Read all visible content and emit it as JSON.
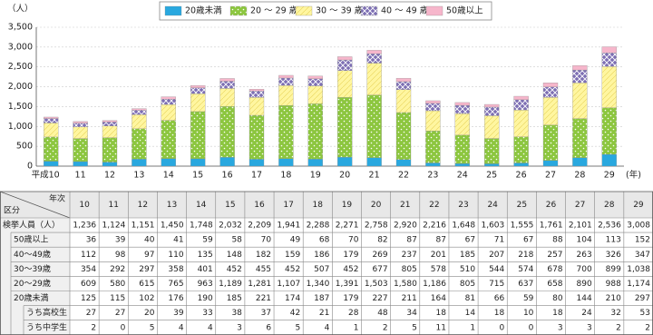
{
  "chart_data": {
    "type": "stacked-bar",
    "y_unit": "（人）",
    "x_unit": "(年)",
    "categories": [
      "平成10",
      "11",
      "12",
      "13",
      "14",
      "15",
      "16",
      "17",
      "18",
      "19",
      "20",
      "21",
      "22",
      "23",
      "24",
      "25",
      "26",
      "27",
      "28",
      "29"
    ],
    "series": [
      {
        "name": "20歳未満",
        "color": "#29a8df",
        "values": [
          125,
          115,
          102,
          176,
          190,
          185,
          221,
          174,
          187,
          179,
          227,
          211,
          164,
          81,
          66,
          59,
          80,
          144,
          210,
          297
        ]
      },
      {
        "name": "20 ～ 29 歳",
        "color": "#8cc63f",
        "values": [
          609,
          580,
          615,
          765,
          963,
          1189,
          1281,
          1107,
          1340,
          1391,
          1503,
          1580,
          1186,
          805,
          715,
          637,
          658,
          890,
          988,
          1174
        ]
      },
      {
        "name": "30 ～ 39 歳",
        "color": "#fff6a0",
        "values": [
          354,
          292,
          297,
          358,
          401,
          452,
          455,
          452,
          507,
          452,
          677,
          805,
          578,
          510,
          544,
          574,
          678,
          700,
          899,
          1038
        ]
      },
      {
        "name": "40 ～ 49 歳",
        "color": "#7d6fb3",
        "values": [
          112,
          98,
          97,
          110,
          135,
          148,
          182,
          159,
          186,
          179,
          269,
          237,
          201,
          185,
          207,
          218,
          257,
          263,
          326,
          347
        ]
      },
      {
        "name": "50歳以上",
        "color": "#f6b6cb",
        "values": [
          36,
          39,
          40,
          41,
          59,
          58,
          70,
          49,
          68,
          70,
          82,
          87,
          87,
          67,
          71,
          67,
          88,
          104,
          113,
          152
        ]
      }
    ],
    "ylim": [
      0,
      3500
    ],
    "yticks": [
      0,
      500,
      {
        "value": 1000,
        "label": "1,000"
      },
      {
        "value": 1500,
        "label": "1,500"
      },
      {
        "value": 2000,
        "label": "2,000"
      },
      {
        "value": 2500,
        "label": "2,500"
      },
      {
        "value": 3000,
        "label": "3,000"
      },
      {
        "value": 3500,
        "label": "3,500"
      }
    ],
    "grid": true
  },
  "table": {
    "corner_top": "年次",
    "corner_left": "区分",
    "columns": [
      "10",
      "11",
      "12",
      "13",
      "14",
      "15",
      "16",
      "17",
      "18",
      "19",
      "20",
      "21",
      "22",
      "23",
      "24",
      "25",
      "26",
      "27",
      "28",
      "29"
    ],
    "rows": [
      {
        "label": "検挙人員（人）",
        "cells": [
          "1,236",
          "1,124",
          "1,151",
          "1,450",
          "1,748",
          "2,032",
          "2,209",
          "1,941",
          "2,288",
          "2,271",
          "2,758",
          "2,920",
          "2,216",
          "1,648",
          "1,603",
          "1,555",
          "1,761",
          "2,101",
          "2,536",
          "3,008"
        ]
      },
      {
        "label": "50歳以上",
        "cells": [
          "36",
          "39",
          "40",
          "41",
          "59",
          "58",
          "70",
          "49",
          "68",
          "70",
          "82",
          "87",
          "87",
          "67",
          "71",
          "67",
          "88",
          "104",
          "113",
          "152"
        ]
      },
      {
        "label": "40～49歳",
        "cells": [
          "112",
          "98",
          "97",
          "110",
          "135",
          "148",
          "182",
          "159",
          "186",
          "179",
          "269",
          "237",
          "201",
          "185",
          "207",
          "218",
          "257",
          "263",
          "326",
          "347"
        ]
      },
      {
        "label": "30～39歳",
        "cells": [
          "354",
          "292",
          "297",
          "358",
          "401",
          "452",
          "455",
          "452",
          "507",
          "452",
          "677",
          "805",
          "578",
          "510",
          "544",
          "574",
          "678",
          "700",
          "899",
          "1,038"
        ]
      },
      {
        "label": "20～29歳",
        "cells": [
          "609",
          "580",
          "615",
          "765",
          "963",
          "1,189",
          "1,281",
          "1,107",
          "1,340",
          "1,391",
          "1,503",
          "1,580",
          "1,186",
          "805",
          "715",
          "637",
          "658",
          "890",
          "988",
          "1,174"
        ]
      },
      {
        "label": "20歳未満",
        "cells": [
          "125",
          "115",
          "102",
          "176",
          "190",
          "185",
          "221",
          "174",
          "187",
          "179",
          "227",
          "211",
          "164",
          "81",
          "66",
          "59",
          "80",
          "144",
          "210",
          "297"
        ]
      },
      {
        "label": "うち高校生",
        "cells": [
          "27",
          "27",
          "20",
          "39",
          "33",
          "38",
          "37",
          "42",
          "21",
          "28",
          "48",
          "34",
          "18",
          "14",
          "18",
          "10",
          "18",
          "24",
          "32",
          "53"
        ]
      },
      {
        "label": "うち中学生",
        "cells": [
          "2",
          "0",
          "5",
          "4",
          "4",
          "3",
          "6",
          "5",
          "4",
          "1",
          "2",
          "5",
          "11",
          "1",
          "0",
          "0",
          "3",
          "3",
          "2",
          "2"
        ]
      }
    ]
  }
}
